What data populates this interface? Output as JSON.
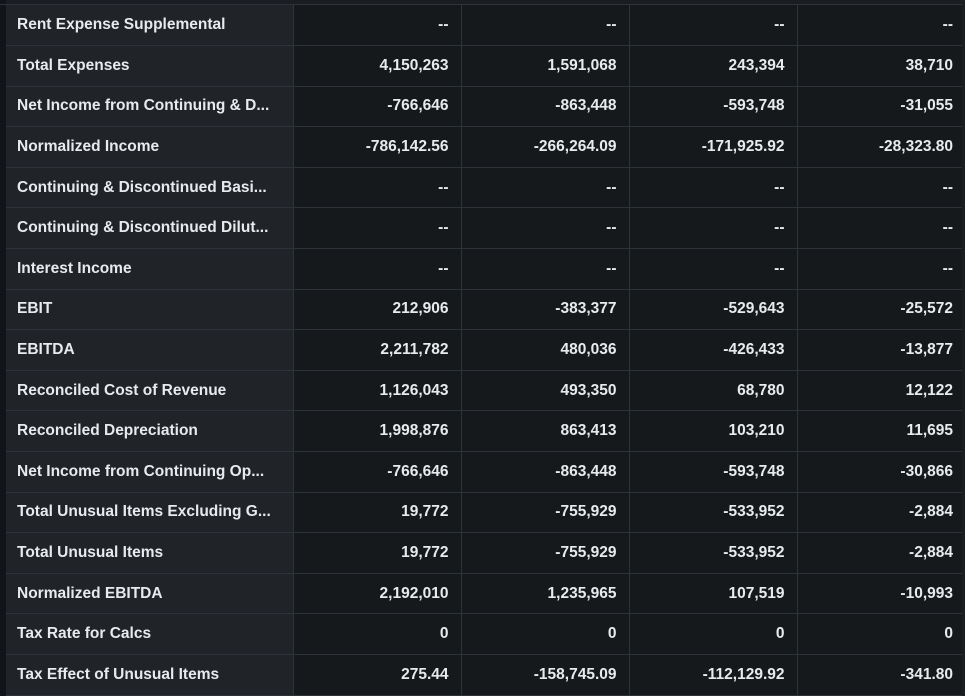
{
  "table": {
    "rows": [
      {
        "label": "Rent Expense Supplemental",
        "values": [
          "--",
          "--",
          "--",
          "--"
        ]
      },
      {
        "label": "Total Expenses",
        "values": [
          "4,150,263",
          "1,591,068",
          "243,394",
          "38,710"
        ]
      },
      {
        "label": "Net Income from Continuing & D...",
        "values": [
          "-766,646",
          "-863,448",
          "-593,748",
          "-31,055"
        ]
      },
      {
        "label": "Normalized Income",
        "values": [
          "-786,142.56",
          "-266,264.09",
          "-171,925.92",
          "-28,323.80"
        ]
      },
      {
        "label": "Continuing & Discontinued Basi...",
        "values": [
          "--",
          "--",
          "--",
          "--"
        ]
      },
      {
        "label": "Continuing & Discontinued Dilut...",
        "values": [
          "--",
          "--",
          "--",
          "--"
        ]
      },
      {
        "label": "Interest Income",
        "values": [
          "--",
          "--",
          "--",
          "--"
        ]
      },
      {
        "label": "EBIT",
        "values": [
          "212,906",
          "-383,377",
          "-529,643",
          "-25,572"
        ]
      },
      {
        "label": "EBITDA",
        "values": [
          "2,211,782",
          "480,036",
          "-426,433",
          "-13,877"
        ]
      },
      {
        "label": "Reconciled Cost of Revenue",
        "values": [
          "1,126,043",
          "493,350",
          "68,780",
          "12,122"
        ]
      },
      {
        "label": "Reconciled Depreciation",
        "values": [
          "1,998,876",
          "863,413",
          "103,210",
          "11,695"
        ]
      },
      {
        "label": "Net Income from Continuing Op...",
        "values": [
          "-766,646",
          "-863,448",
          "-593,748",
          "-30,866"
        ]
      },
      {
        "label": "Total Unusual Items Excluding G...",
        "values": [
          "19,772",
          "-755,929",
          "-533,952",
          "-2,884"
        ]
      },
      {
        "label": "Total Unusual Items",
        "values": [
          "19,772",
          "-755,929",
          "-533,952",
          "-2,884"
        ]
      },
      {
        "label": "Normalized EBITDA",
        "values": [
          "2,192,010",
          "1,235,965",
          "107,519",
          "-10,993"
        ]
      },
      {
        "label": "Tax Rate for Calcs",
        "values": [
          "0",
          "0",
          "0",
          "0"
        ]
      },
      {
        "label": "Tax Effect of Unusual Items",
        "values": [
          "275.44",
          "-158,745.09",
          "-112,129.92",
          "-341.80"
        ]
      }
    ]
  },
  "colors": {
    "background": "#16191c",
    "label_background": "#202327",
    "border": "#2e3339",
    "text": "#e8eaed"
  }
}
